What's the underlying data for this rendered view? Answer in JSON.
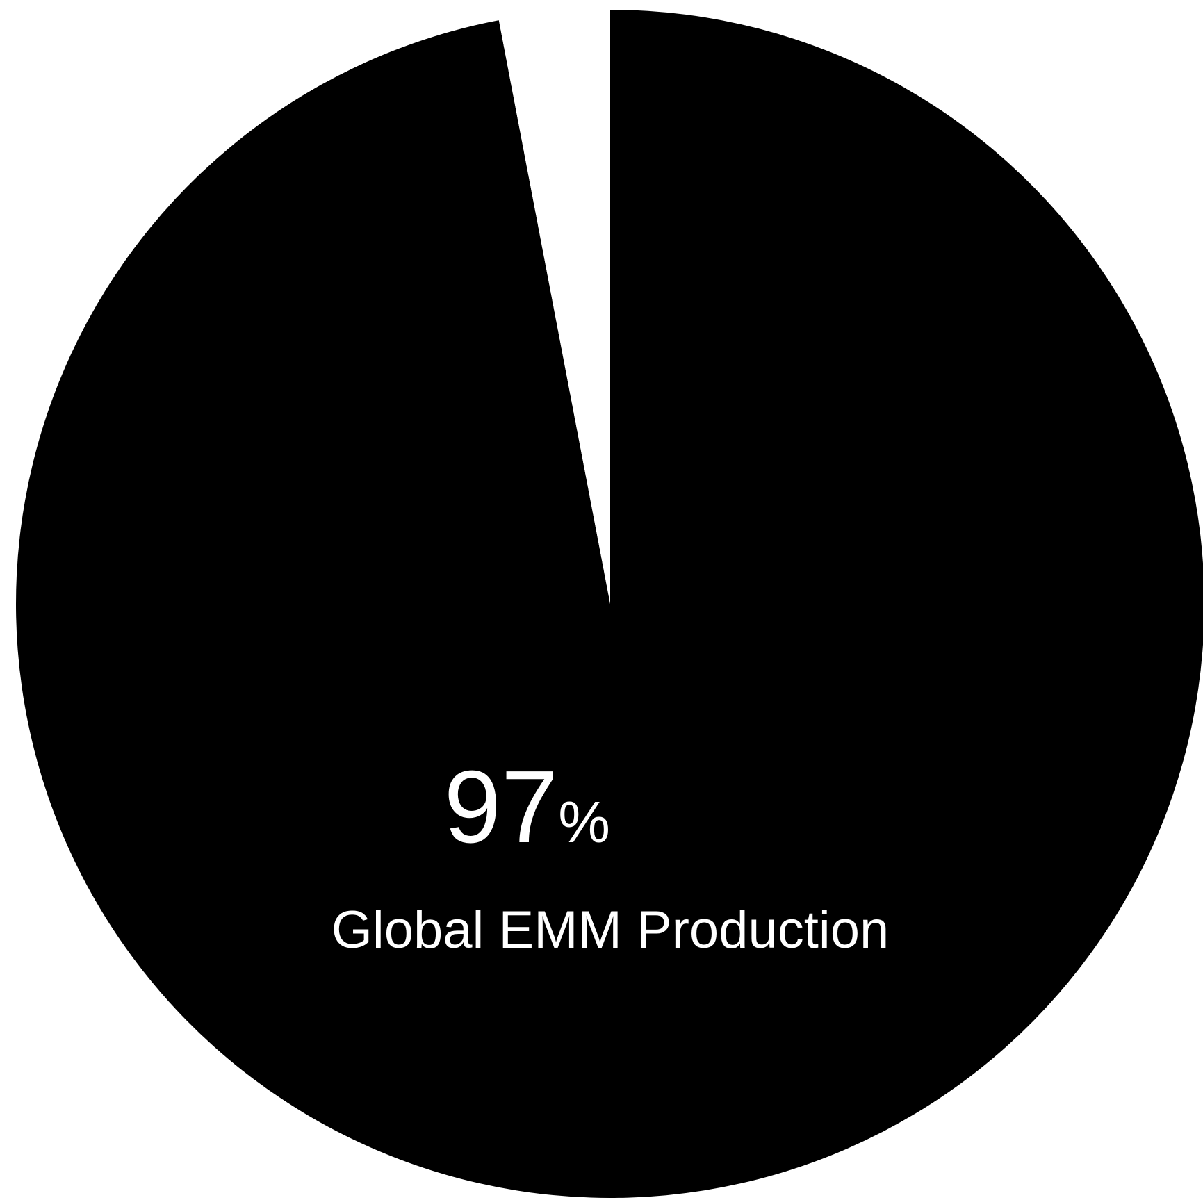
{
  "chart_data": {
    "type": "pie",
    "slices": [
      {
        "label": "Global EMM Production",
        "value": 97,
        "color": "#000000"
      },
      {
        "label": "",
        "value": 3,
        "color": "#ffffff"
      }
    ],
    "center_label": {
      "value": "97",
      "unit": "%",
      "caption": "Global EMM Production"
    },
    "colors": {
      "fill": "#000000",
      "text": "#ffffff",
      "background": "#ffffff"
    }
  }
}
